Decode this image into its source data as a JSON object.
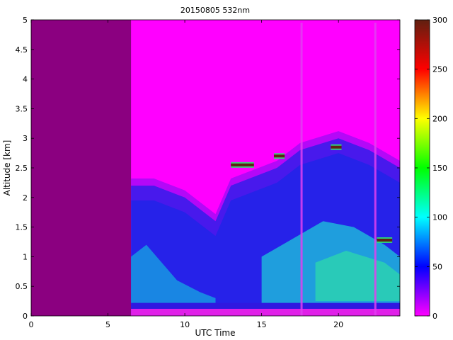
{
  "chart_data": {
    "type": "heatmap",
    "title": "20150805 532nm",
    "xlabel": "UTC Time",
    "ylabel": "Altitude [km]",
    "xlim": [
      0,
      24
    ],
    "ylim": [
      0,
      5
    ],
    "xticks": [
      "0",
      "5",
      "10",
      "15",
      "20"
    ],
    "xtick_values": [
      0,
      5,
      10,
      15,
      20
    ],
    "yticks": [
      "0",
      "0.5",
      "1",
      "1.5",
      "2",
      "2.5",
      "3",
      "3.5",
      "4",
      "4.5",
      "5"
    ],
    "ytick_values": [
      0,
      0.5,
      1,
      1.5,
      2,
      2.5,
      3,
      3.5,
      4,
      4.5,
      5
    ],
    "colorbar": {
      "range": [
        0,
        300
      ],
      "ticks": [
        "0",
        "50",
        "100",
        "150",
        "200",
        "250",
        "300"
      ],
      "tick_values": [
        0,
        50,
        100,
        150,
        200,
        250,
        300
      ],
      "colormap": [
        "#ff00ff",
        "#0000ff",
        "#00ffff",
        "#00ff00",
        "#ffff00",
        "#ff0000",
        "#602010"
      ]
    },
    "no_data_color": "#8b0080",
    "data_start_utc": 6.5,
    "grid": false,
    "features": {
      "boundary_layer_top_km": [
        [
          6.5,
          2.2
        ],
        [
          8,
          2.2
        ],
        [
          10,
          2.0
        ],
        [
          12,
          1.6
        ],
        [
          13,
          2.2
        ],
        [
          15,
          2.4
        ],
        [
          16,
          2.5
        ],
        [
          17.5,
          2.8
        ],
        [
          20,
          3.0
        ],
        [
          22,
          2.8
        ],
        [
          24,
          2.5
        ]
      ],
      "cloud_layers": [
        {
          "x": [
            13.0,
            14.5
          ],
          "alt_km": 2.55
        },
        {
          "x": [
            15.8,
            16.5
          ],
          "alt_km": 2.7
        },
        {
          "x": [
            19.5,
            20.2
          ],
          "alt_km": 2.85
        },
        {
          "x": [
            22.5,
            23.5
          ],
          "alt_km": 1.28
        }
      ],
      "gap_columns_utc": [
        17.6,
        22.4
      ]
    }
  }
}
